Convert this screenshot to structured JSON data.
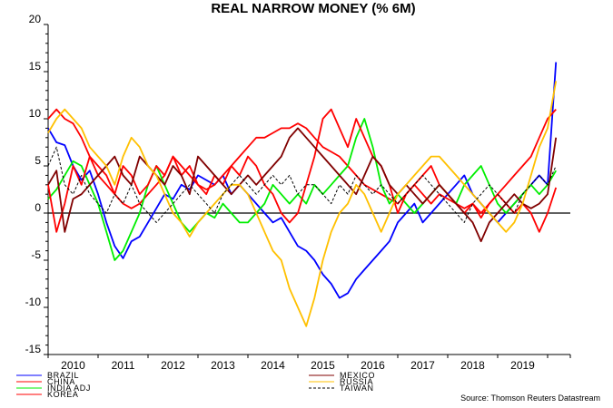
{
  "chart_data": {
    "type": "line",
    "title": "REAL NARROW MONEY (% 6M)",
    "xlabel": "",
    "ylabel": "",
    "ylim": [
      -15,
      20
    ],
    "yticks": [
      "20",
      "15",
      "10",
      "5",
      "0",
      "-5",
      "-10",
      "-15"
    ],
    "ytick_values": [
      20,
      15,
      10,
      5,
      0,
      -5,
      -10,
      -15
    ],
    "xticks": [
      "2010",
      "2011",
      "2012",
      "2013",
      "2014",
      "2015",
      "2016",
      "2017",
      "2018",
      "2019"
    ],
    "x_start": "Jan 2010",
    "x_step_months": 2,
    "source": "Source: Thomson Reuters Datastream",
    "zero_line": true,
    "series": [
      {
        "name": "BRAZIL",
        "color": "#0000ff",
        "dash": false,
        "values": [
          9,
          7.5,
          7.2,
          5,
          3.5,
          4.5,
          2,
          -1,
          -3.5,
          -4.8,
          -3,
          -2.5,
          -1,
          0.5,
          2,
          1.5,
          3,
          2.5,
          4,
          3.5,
          3,
          4,
          2,
          3,
          2,
          1,
          0,
          -1,
          -0.5,
          -2,
          -3.5,
          -4,
          -5,
          -6.5,
          -7.5,
          -9,
          -8.5,
          -7,
          -6,
          -5,
          -4,
          -3,
          -1,
          0,
          1,
          -1,
          0,
          1,
          2,
          3,
          4,
          2,
          1,
          0,
          -1,
          0,
          1,
          2,
          3,
          4,
          3,
          16
        ]
      },
      {
        "name": "CHINA",
        "color": "#ff0000",
        "dash": false,
        "values": [
          10,
          11,
          10,
          9.5,
          8,
          6,
          5,
          4,
          2,
          1,
          0.5,
          1,
          2,
          3,
          4,
          6,
          5,
          4,
          3,
          2.5,
          3,
          4,
          5,
          6,
          7,
          8,
          8,
          8.5,
          9,
          9,
          9.5,
          9,
          8,
          7,
          6.5,
          6,
          5,
          4,
          3,
          2.5,
          2,
          1.5,
          1,
          2,
          3,
          2,
          1,
          2,
          1.5,
          1,
          0.5,
          1,
          0,
          1,
          2,
          3,
          4,
          5,
          6,
          8,
          10,
          11
        ]
      },
      {
        "name": "INDIA ADJ",
        "color": "#00ee00",
        "dash": false,
        "values": [
          1.5,
          2.5,
          4,
          5.5,
          5,
          3,
          1,
          -2,
          -5,
          -4,
          -2,
          0,
          3,
          5,
          3,
          1,
          -1,
          -2,
          -1,
          0,
          -0.5,
          1,
          0,
          -1,
          -1,
          0,
          1,
          3,
          2,
          1,
          2,
          1,
          3,
          2,
          3,
          4,
          5,
          8,
          10,
          7,
          3,
          1,
          2,
          1,
          0,
          1,
          2,
          3,
          2,
          1,
          3,
          4,
          5,
          3,
          1,
          0,
          1,
          2,
          3,
          2,
          3,
          4.5
        ]
      },
      {
        "name": "KOREA",
        "color": "#ff0000",
        "dash": false,
        "values": [
          3,
          -2,
          1,
          5,
          3,
          6,
          4,
          3,
          2,
          5,
          4,
          2,
          3,
          5,
          4,
          6,
          4,
          5,
          3,
          2,
          4,
          3,
          5,
          4,
          6,
          5,
          3,
          2,
          0,
          -1,
          0,
          3,
          6,
          10,
          11,
          9,
          7,
          10,
          8,
          6,
          5,
          3,
          0,
          2,
          3,
          4,
          5,
          3,
          2,
          1,
          0,
          1,
          -0.5,
          1,
          2,
          1,
          0,
          1,
          0,
          -2,
          0,
          2.7
        ]
      },
      {
        "name": "MEXICO",
        "color": "#800000",
        "dash": false,
        "values": [
          3,
          4.5,
          -2,
          1.5,
          2,
          3,
          4,
          5,
          6,
          4,
          3,
          6,
          5,
          4,
          3,
          5,
          4,
          2,
          6,
          5,
          4,
          3,
          2,
          3,
          4,
          3,
          4,
          5,
          6,
          8,
          9,
          8,
          7,
          6,
          5,
          4,
          3,
          2,
          4,
          6,
          5,
          3,
          2,
          3,
          2,
          1,
          2,
          3,
          2,
          1,
          0,
          -1,
          -3,
          -1,
          0,
          1,
          2,
          1,
          0.5,
          1,
          2,
          8
        ]
      },
      {
        "name": "RUSSIA",
        "color": "#ffc000",
        "dash": false,
        "values": [
          8.5,
          10,
          11,
          10,
          9,
          7,
          6,
          5,
          3,
          6,
          8,
          7,
          5,
          4,
          2,
          0,
          -1,
          -2.5,
          -1,
          0,
          1,
          2,
          3,
          3,
          2,
          0,
          -2,
          -4,
          -5,
          -8,
          -10,
          -12,
          -9,
          -5,
          -2,
          0,
          1,
          3,
          2,
          0,
          -2,
          0,
          2,
          3,
          4,
          5,
          6,
          6,
          5,
          4,
          3,
          2,
          1,
          0,
          -1,
          -2,
          -1,
          1,
          4,
          7,
          9,
          14
        ]
      },
      {
        "name": "TAIWAN",
        "color": "#000000",
        "dash": true,
        "values": [
          5,
          7,
          3,
          2,
          4,
          2,
          1,
          0,
          2,
          1,
          3,
          1,
          0,
          -1,
          0,
          1,
          2,
          3,
          2,
          1,
          0,
          2,
          3,
          4,
          3,
          2,
          3,
          4,
          3,
          4,
          2,
          3,
          3,
          2,
          1,
          3,
          2,
          4,
          3,
          2,
          3,
          2,
          1,
          2,
          3,
          4,
          3,
          2,
          1,
          0,
          -1,
          1,
          2,
          3,
          2,
          1,
          0,
          2,
          3,
          4,
          3,
          5
        ]
      }
    ]
  }
}
